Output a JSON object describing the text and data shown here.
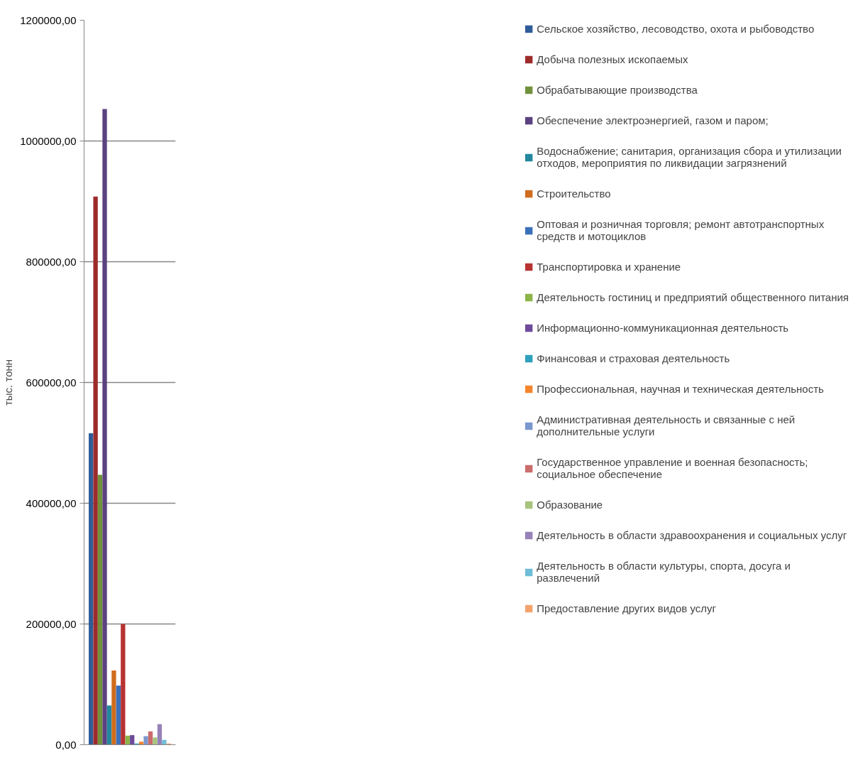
{
  "chart_data": {
    "type": "bar",
    "ylabel": "тыс. тонн",
    "categories": [
      null
    ],
    "ylim": [
      0,
      1200000
    ],
    "yticks": [
      {
        "value": 0,
        "label": "0,00"
      },
      {
        "value": 200000,
        "label": "200000,00"
      },
      {
        "value": 400000,
        "label": "400000,00"
      },
      {
        "value": 600000,
        "label": "600000,00"
      },
      {
        "value": 800000,
        "label": "800000,00"
      },
      {
        "value": 1000000,
        "label": "1000000,00"
      },
      {
        "value": 1200000,
        "label": "1200000,00"
      }
    ],
    "grid": "y",
    "legend": "right",
    "tick_labels": "y",
    "series": [
      {
        "name": "Сельское хозяйство, лесоводство, охота и рыбоводство",
        "color": "#2e5c98",
        "values": [
          516000
        ]
      },
      {
        "name": "Добыча полезных ископаемых",
        "color": "#9e2b2b",
        "values": [
          908000
        ]
      },
      {
        "name": "Обрабатывающие производства",
        "color": "#71913a",
        "values": [
          447000
        ]
      },
      {
        "name": "Обеспечение электроэнергией, газом и паром;",
        "color": "#5b4180",
        "values": [
          1053000
        ]
      },
      {
        "name": "Водоснабжение; санитария, организация сбора и утилизации отходов, мероприятия по ликвидации загрязнений",
        "color": "#23879e",
        "values": [
          65000
        ]
      },
      {
        "name": "Строительство",
        "color": "#d06c1d",
        "values": [
          123000
        ]
      },
      {
        "name": "Оптовая и розничная торговля; ремонт автотранспортных средств и мотоциклов",
        "color": "#3a70ba",
        "values": [
          98000
        ]
      },
      {
        "name": "Транспортировка и хранение",
        "color": "#b83232",
        "values": [
          200000
        ]
      },
      {
        "name": "Деятельность гостиниц и предприятий общественного питания",
        "color": "#8cb449",
        "values": [
          15000
        ]
      },
      {
        "name": "Информационно-коммуникационная деятельность",
        "color": "#6e4b9a",
        "values": [
          16000
        ]
      },
      {
        "name": "Финансовая и страховая деятельность",
        "color": "#2ea0bd",
        "values": [
          2000
        ]
      },
      {
        "name": "Профессиональная, научная и техническая деятельность",
        "color": "#f3852e",
        "values": [
          5000
        ]
      },
      {
        "name": "Административная деятельность и связанные с ней дополнительные услуги",
        "color": "#7b98ce",
        "values": [
          14000
        ]
      },
      {
        "name": "Государственное управление и военная безопасность; социальное обеспечение",
        "color": "#cb6b6b",
        "values": [
          22000
        ]
      },
      {
        "name": "Образование",
        "color": "#a6c47d",
        "values": [
          12000
        ]
      },
      {
        "name": "Деятельность в области здравоохранения и социальных услуг",
        "color": "#9782b7",
        "values": [
          34000
        ]
      },
      {
        "name": "Деятельность в области культуры, спорта, досуга и развлечений",
        "color": "#6ebdd8",
        "values": [
          8000
        ]
      },
      {
        "name": "Предоставление других видов услуг",
        "color": "#f5a36e",
        "values": [
          2000
        ]
      }
    ]
  }
}
